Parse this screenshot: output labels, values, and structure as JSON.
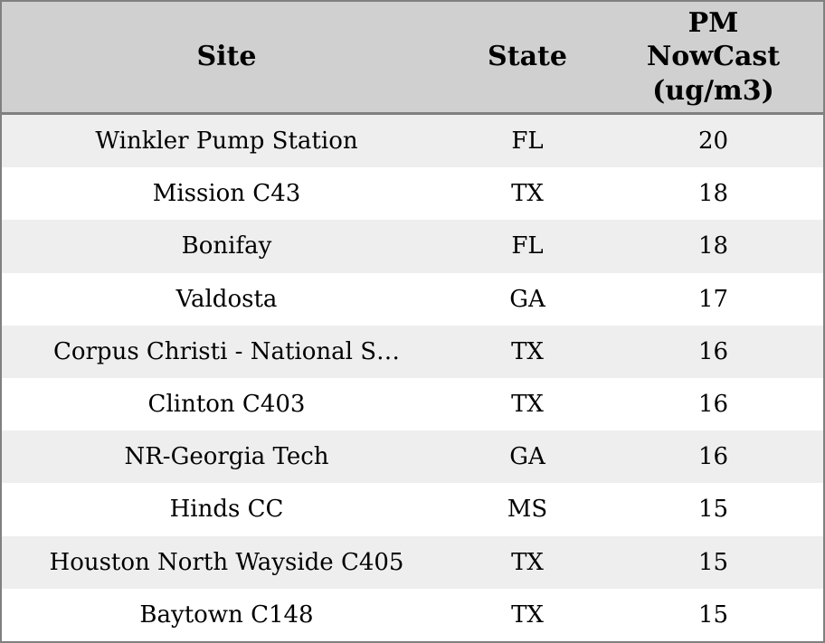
{
  "chart_data": {
    "type": "table",
    "columns": [
      "Site",
      "State",
      "PM NowCast (ug/m3)"
    ],
    "rows": [
      {
        "site": "Winkler Pump Station",
        "state": "FL",
        "pm_nowcast": 20
      },
      {
        "site": "Mission C43",
        "state": "TX",
        "pm_nowcast": 18
      },
      {
        "site": "Bonifay",
        "state": "FL",
        "pm_nowcast": 18
      },
      {
        "site": "Valdosta",
        "state": "GA",
        "pm_nowcast": 17
      },
      {
        "site": "Corpus Christi - National S…",
        "state": "TX",
        "pm_nowcast": 16
      },
      {
        "site": "Clinton C403",
        "state": "TX",
        "pm_nowcast": 16
      },
      {
        "site": "NR-Georgia Tech",
        "state": "GA",
        "pm_nowcast": 16
      },
      {
        "site": "Hinds CC",
        "state": "MS",
        "pm_nowcast": 15
      },
      {
        "site": "Houston North Wayside C405",
        "state": "TX",
        "pm_nowcast": 15
      },
      {
        "site": "Baytown C148",
        "state": "TX",
        "pm_nowcast": 15
      }
    ]
  },
  "header": {
    "site": "Site",
    "state": "State",
    "pm_nowcast": "PM\nNowCast\n(ug/m3)"
  },
  "colors": {
    "border": "#808080",
    "header_bg": "#d0d0d0",
    "row_alt_bg": "#eeeeee",
    "row_bg": "#ffffff",
    "text": "#000000"
  }
}
